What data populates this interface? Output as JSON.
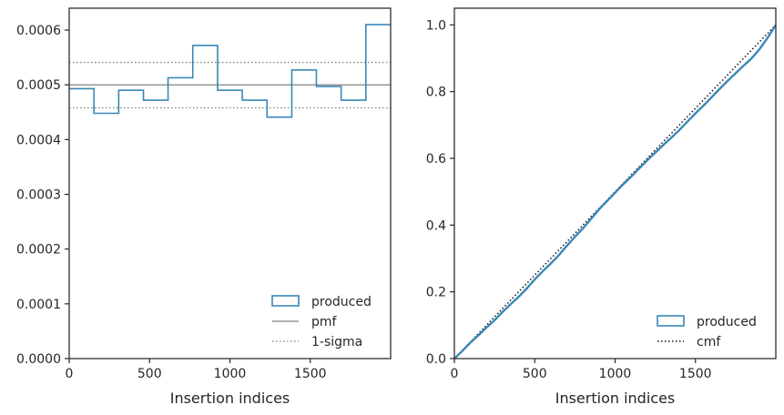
{
  "colors": {
    "produced": "#3a87b7",
    "pmf": "#808080",
    "sigma": "#808080",
    "cmf": "#111111",
    "axis": "#262626"
  },
  "chart_data": [
    {
      "type": "histogram",
      "xlabel": "Insertion indices",
      "ylabel": "",
      "xlim": [
        0,
        2000
      ],
      "ylim": [
        0,
        0.00064
      ],
      "xticks": [
        0,
        500,
        1000,
        1500
      ],
      "xtick_labels": [
        "0",
        "500",
        "1000",
        "1500"
      ],
      "yticks": [
        0,
        0.0001,
        0.0002,
        0.0003,
        0.0004,
        0.0005,
        0.0006
      ],
      "ytick_labels": [
        "0.0000",
        "0.0001",
        "0.0002",
        "0.0003",
        "0.0004",
        "0.0005",
        "0.0006"
      ],
      "bin_edges": [
        0,
        154,
        308,
        462,
        615,
        769,
        923,
        1077,
        1231,
        1385,
        1538,
        1692,
        1846,
        2000
      ],
      "values": [
        0.000493,
        0.000448,
        0.00049,
        0.000472,
        0.000513,
        0.000572,
        0.00049,
        0.000472,
        0.000441,
        0.000527,
        0.000497,
        0.000472,
        0.00061
      ],
      "pmf": 0.0005,
      "sigma_lower": 0.000458,
      "sigma_upper": 0.000541,
      "legend_position": "lower-right",
      "legend": [
        "produced",
        "pmf",
        "1-sigma"
      ]
    },
    {
      "type": "line",
      "xlabel": "Insertion indices",
      "ylabel": "",
      "xlim": [
        0,
        2000
      ],
      "ylim": [
        0,
        1.05
      ],
      "xticks": [
        0,
        500,
        1000,
        1500
      ],
      "xtick_labels": [
        "0",
        "500",
        "1000",
        "1500"
      ],
      "yticks": [
        0,
        0.2,
        0.4,
        0.6,
        0.8,
        1.0
      ],
      "ytick_labels": [
        "0.0",
        "0.2",
        "0.4",
        "0.6",
        "0.8",
        "1.0"
      ],
      "produced_x": [
        0,
        50,
        100,
        150,
        200,
        250,
        300,
        350,
        400,
        450,
        500,
        550,
        600,
        650,
        700,
        750,
        800,
        850,
        900,
        950,
        1000,
        1050,
        1100,
        1150,
        1200,
        1250,
        1300,
        1350,
        1400,
        1450,
        1500,
        1550,
        1600,
        1650,
        1700,
        1750,
        1800,
        1850,
        1900,
        1950,
        2000
      ],
      "produced_y": [
        0,
        0.023,
        0.048,
        0.07,
        0.093,
        0.115,
        0.14,
        0.163,
        0.185,
        0.21,
        0.237,
        0.262,
        0.285,
        0.31,
        0.338,
        0.365,
        0.39,
        0.418,
        0.447,
        0.472,
        0.497,
        0.522,
        0.545,
        0.57,
        0.594,
        0.617,
        0.64,
        0.662,
        0.685,
        0.71,
        0.735,
        0.758,
        0.783,
        0.808,
        0.832,
        0.855,
        0.878,
        0.9,
        0.928,
        0.962,
        1.0
      ],
      "cmf_x": [
        0,
        2000
      ],
      "cmf_y": [
        0,
        1.0
      ],
      "legend_position": "lower-right",
      "legend": [
        "produced",
        "cmf"
      ]
    }
  ]
}
